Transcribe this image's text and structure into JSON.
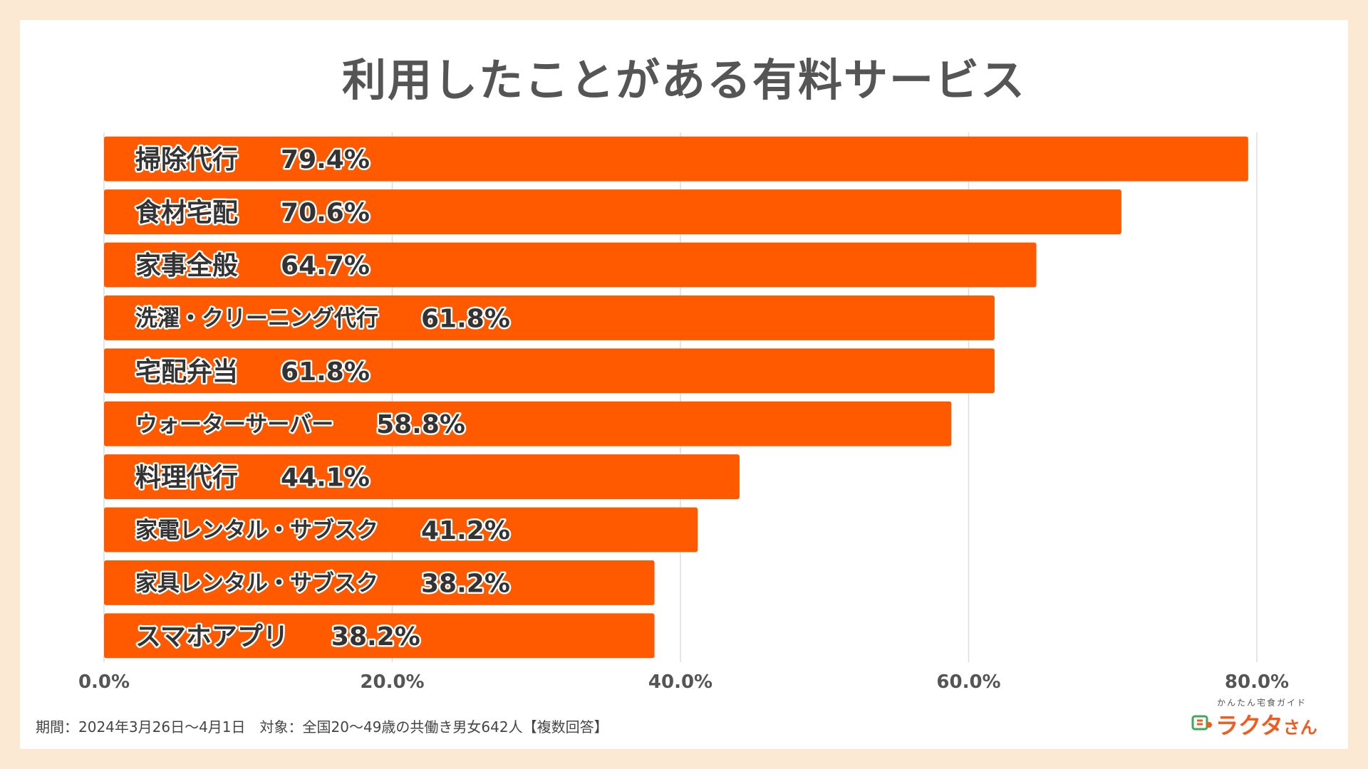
{
  "chart_data": {
    "type": "bar",
    "orientation": "horizontal",
    "title": "利用したことがある有料サービス",
    "categories": [
      "掃除代行",
      "食材宅配",
      "家事全般",
      "洗濯・クリーニング代行",
      "宅配弁当",
      "ウォーターサーバー",
      "料理代行",
      "家電レンタル・サブスク",
      "家具レンタル・サブスク",
      "スマホアプリ"
    ],
    "values": [
      79.4,
      70.6,
      64.7,
      61.8,
      61.8,
      58.8,
      44.1,
      41.2,
      38.2,
      38.2
    ],
    "value_labels": [
      "79.4%",
      "70.6%",
      "64.7%",
      "61.8%",
      "61.8%",
      "58.8%",
      "44.1%",
      "41.2%",
      "38.2%",
      "38.2%"
    ],
    "xlim": [
      0,
      80
    ],
    "xticks": [
      0,
      20,
      40,
      60,
      80
    ],
    "xtick_labels": [
      "0.0%",
      "20.0%",
      "40.0%",
      "60.0%",
      "80.0%"
    ],
    "grid": true,
    "bar_color": "#FF5A00",
    "grid_color": "#DDDDDD"
  },
  "footnote": "期間：2024年3月26日～4月1日　対象：全国20～49歳の共働き男女642人【複数回答】",
  "logo": {
    "subtitle": "かんたん宅食ガイド",
    "name": "ラクタ",
    "suffix": "さん"
  }
}
